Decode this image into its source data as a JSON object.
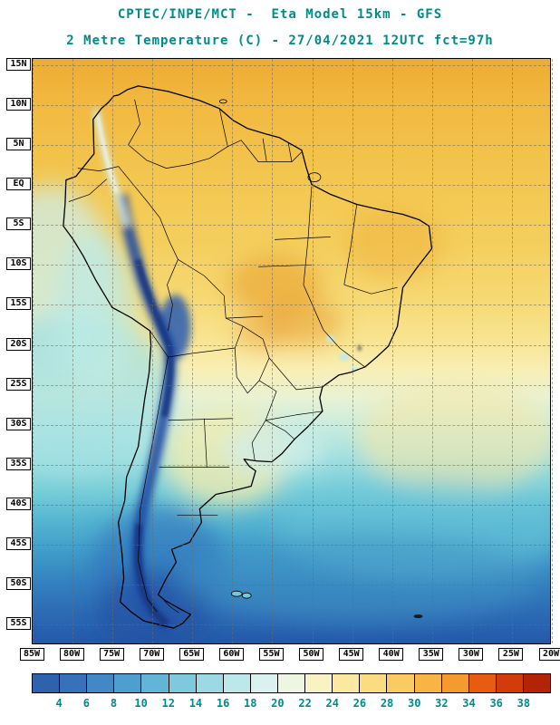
{
  "header": {
    "line1": "CPTEC/INPE/MCT -  Eta Model 15km - GFS",
    "line2": "2 Metre Temperature (C) - 27/04/2021 12UTC fct=97h"
  },
  "map": {
    "lat_labels": [
      "15N",
      "10N",
      "5N",
      "EQ",
      "5S",
      "10S",
      "15S",
      "20S",
      "25S",
      "30S",
      "35S",
      "40S",
      "45S",
      "50S",
      "55S"
    ],
    "lon_labels": [
      "85W",
      "80W",
      "75W",
      "70W",
      "65W",
      "60W",
      "55W",
      "50W",
      "45W",
      "40W",
      "35W",
      "30W",
      "25W",
      "20W"
    ]
  },
  "colorbar": {
    "tick_labels": [
      "4",
      "6",
      "8",
      "10",
      "12",
      "14",
      "16",
      "18",
      "20",
      "22",
      "24",
      "26",
      "28",
      "30",
      "32",
      "34",
      "36",
      "38"
    ],
    "colors": [
      "#2e62ae",
      "#3672bc",
      "#4287c6",
      "#4f9ed0",
      "#63b5d8",
      "#7fc9dd",
      "#9cd9e2",
      "#bce8ea",
      "#d9f2ef",
      "#eef5e3",
      "#f8f2c4",
      "#fbe9a2",
      "#fbdc80",
      "#facb60",
      "#f8b545",
      "#f49a2e",
      "#e85c12",
      "#d13c0a",
      "#b22405"
    ]
  },
  "colors": {
    "title": "#008b8b",
    "axis_label": "#000000",
    "grid": "#6e6c60",
    "frame": "#000000",
    "background": "#ffffff"
  }
}
